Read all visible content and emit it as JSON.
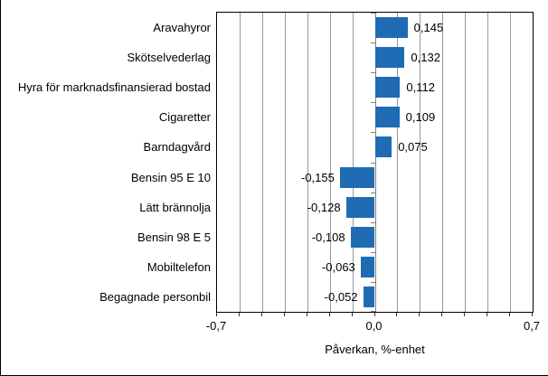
{
  "chart_data": {
    "type": "bar",
    "orientation": "horizontal",
    "categories": [
      "Aravahyror",
      "Skötselvederlag",
      "Hyra för marknadsfinansierad bostad",
      "Cigaretter",
      "Barndagvård",
      "Bensin 95 E 10",
      "Lätt brännolja",
      "Bensin 98 E 5",
      "Mobiltelefon",
      "Begagnade personbil"
    ],
    "values": [
      0.145,
      0.132,
      0.112,
      0.109,
      0.075,
      -0.155,
      -0.128,
      -0.108,
      -0.063,
      -0.052
    ],
    "value_labels": [
      "0,145",
      "0,132",
      "0,112",
      "0,109",
      "0,075",
      "-0,155",
      "-0,128",
      "-0,108",
      "-0,063",
      "-0,052"
    ],
    "title": "",
    "xlabel": "Påverkan, %-enhet",
    "ylabel": "",
    "xlim": [
      -0.7,
      0.7
    ],
    "gridline_step": 0.1,
    "grid": true,
    "legend": false,
    "x_ticks": [
      {
        "value": -0.7,
        "label": "-0,7"
      },
      {
        "value": 0.0,
        "label": "0,0"
      },
      {
        "value": 0.7,
        "label": "0,7"
      }
    ],
    "colors": {
      "bar": "#1f6cb4",
      "gridline": "#999999",
      "zero_axis": "#808080",
      "plot_border": "#000000",
      "text": "#000000"
    }
  }
}
